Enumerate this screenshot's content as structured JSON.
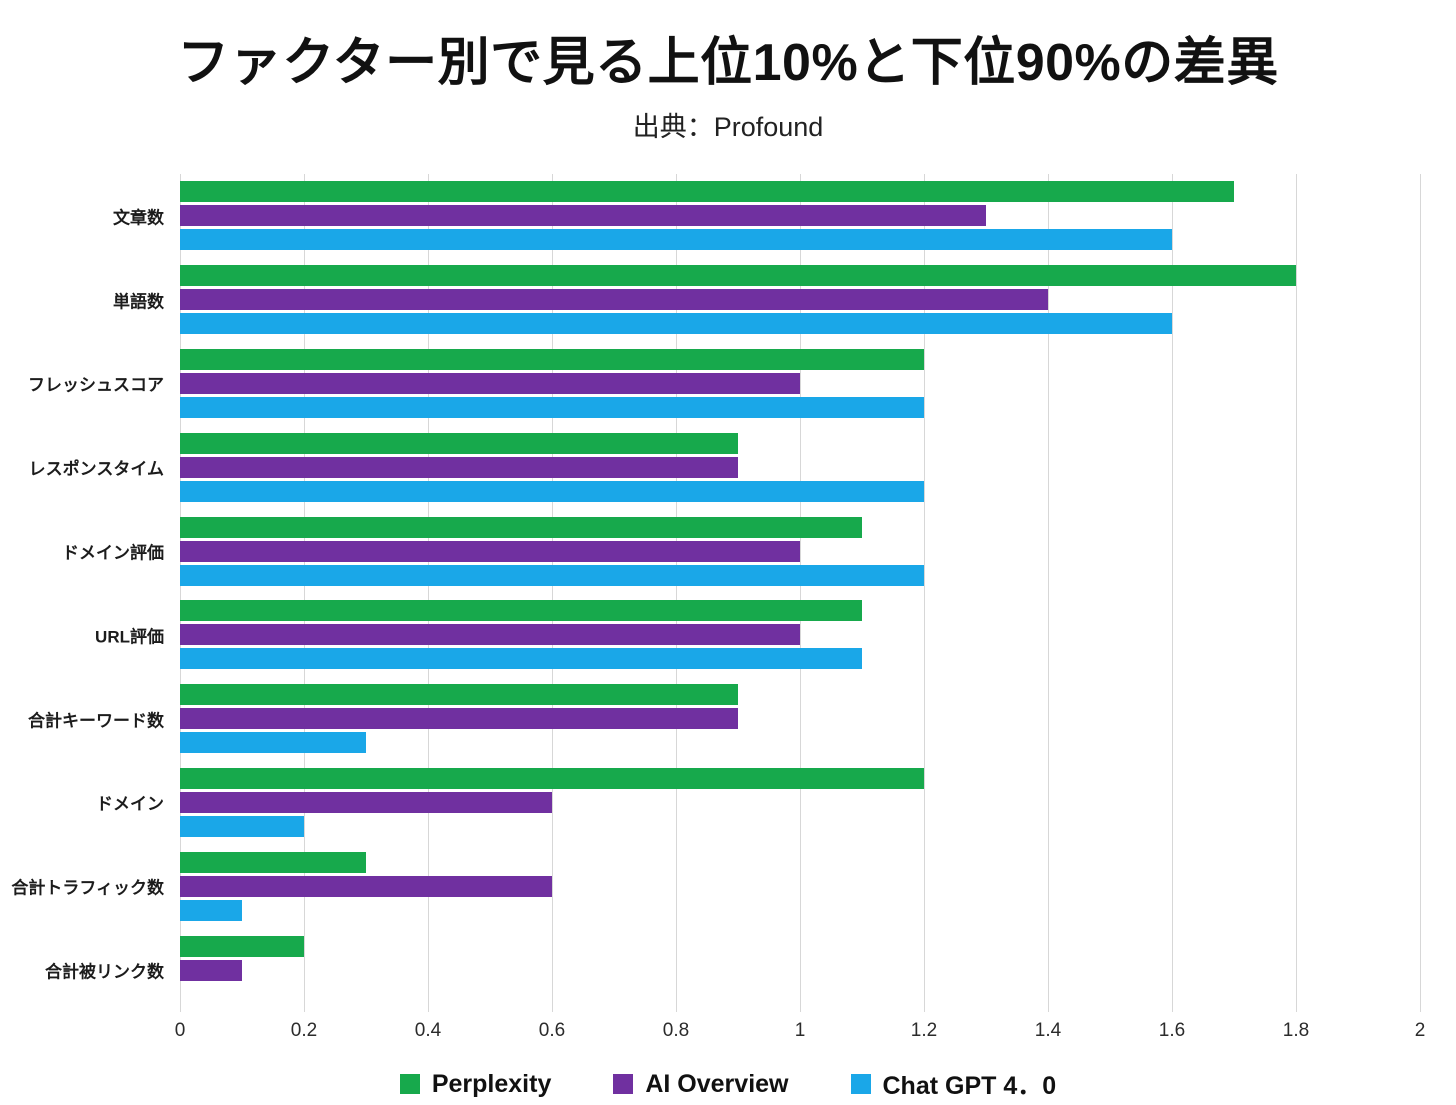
{
  "chart_data": {
    "type": "bar",
    "orientation": "horizontal",
    "title": "ファクター別で見る上位10%と下位90%の差異",
    "subtitle": "出典：Profound",
    "categories": [
      "文章数",
      "単語数",
      "フレッシュスコア",
      "レスポンスタイム",
      "ドメイン評価",
      "URL評価",
      "合計キーワード数",
      "ドメイン",
      "合計トラフィック数",
      "合計被リンク数"
    ],
    "series": [
      {
        "name": "Perplexity",
        "color": "#17a94c",
        "values": [
          1.7,
          1.8,
          1.2,
          0.9,
          1.1,
          1.1,
          0.9,
          1.2,
          0.3,
          0.2
        ]
      },
      {
        "name": "AI Overview",
        "color": "#7030a0",
        "values": [
          1.3,
          1.4,
          1.0,
          0.9,
          1.0,
          1.0,
          0.9,
          0.6,
          0.6,
          0.1
        ]
      },
      {
        "name": "Chat GPT 4．0",
        "color": "#1aa7e8",
        "values": [
          1.6,
          1.6,
          1.2,
          1.2,
          1.2,
          1.1,
          0.3,
          0.2,
          0.1,
          0
        ]
      }
    ],
    "xlim": [
      0,
      2
    ],
    "xticks": [
      0,
      0.2,
      0.4,
      0.6,
      0.8,
      1,
      1.2,
      1.4,
      1.6,
      1.8,
      2
    ],
    "grid": true,
    "legend_position": "bottom"
  }
}
